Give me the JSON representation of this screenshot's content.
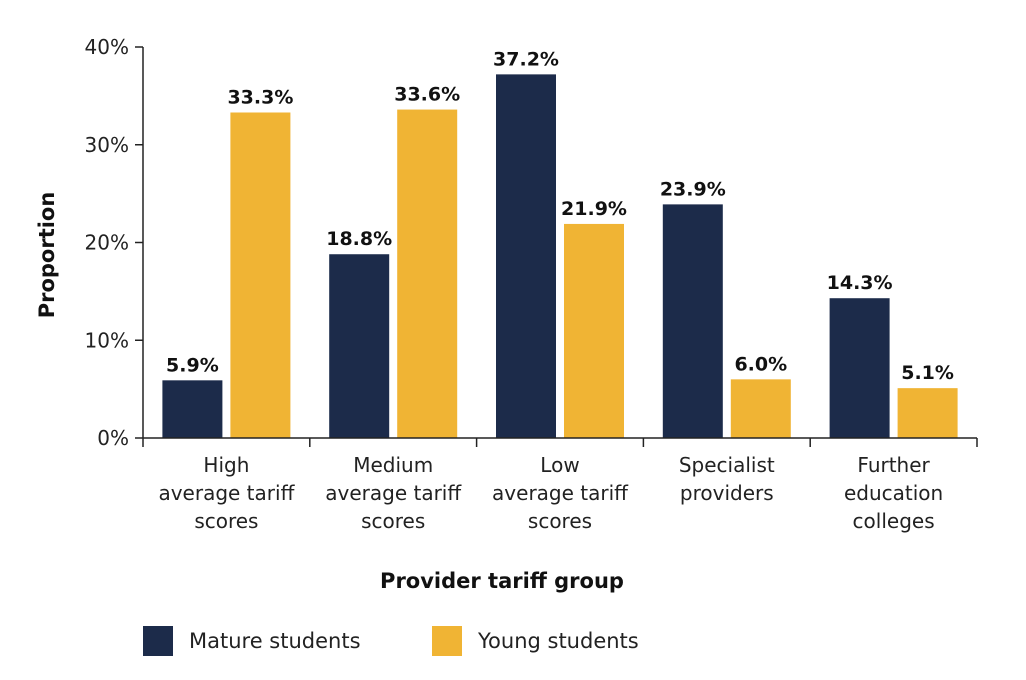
{
  "chart_data": {
    "type": "bar",
    "xlabel": "Provider tariff group",
    "ylabel": "Proportion",
    "ylim": [
      0,
      40
    ],
    "yticks": [
      "0%",
      "10%",
      "20%",
      "30%",
      "40%"
    ],
    "ytick_values": [
      0,
      10,
      20,
      30,
      40
    ],
    "grid": false,
    "legend_position": "bottom-left",
    "categories": [
      [
        "High",
        "average tariff",
        "scores"
      ],
      [
        "Medium",
        "average tariff",
        "scores"
      ],
      [
        "Low",
        "average tariff",
        "scores"
      ],
      [
        "Specialist",
        "providers"
      ],
      [
        "Further",
        "education",
        "colleges"
      ]
    ],
    "series": [
      {
        "name": "Mature students",
        "color": "#1c2b4a",
        "values": [
          5.9,
          18.8,
          37.2,
          23.9,
          14.3
        ],
        "labels": [
          "5.9%",
          "18.8%",
          "37.2%",
          "23.9%",
          "14.3%"
        ]
      },
      {
        "name": "Young students",
        "color": "#f0b434",
        "values": [
          33.3,
          33.6,
          21.9,
          6.0,
          5.1
        ],
        "labels": [
          "33.3%",
          "33.6%",
          "21.9%",
          "6.0%",
          "5.1%"
        ]
      }
    ]
  }
}
